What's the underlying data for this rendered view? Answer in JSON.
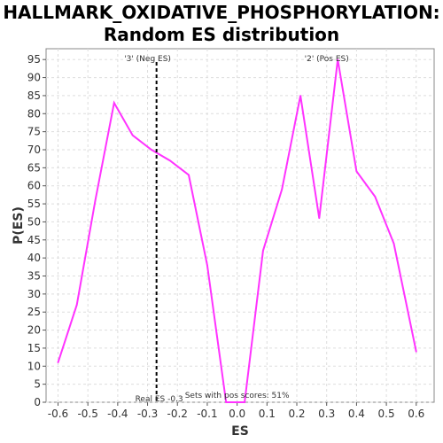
{
  "chart_data": {
    "type": "line",
    "title_line1": "HALLMARK_OXIDATIVE_PHOSPHORYLATION:",
    "title_line2": "Random ES distribution",
    "xlabel": "ES",
    "ylabel": "P(ES)",
    "xlim": [
      -0.64,
      0.66
    ],
    "ylim": [
      0,
      98
    ],
    "xticks": [
      -0.6,
      -0.5,
      -0.4,
      -0.3,
      -0.2,
      -0.1,
      0.0,
      0.1,
      0.2,
      0.3,
      0.4,
      0.5,
      0.6
    ],
    "xtick_labels": [
      "-0.6",
      "-0.5",
      "-0.4",
      "-0.3",
      "-0.2",
      "-0.1",
      "0.0",
      "0.1",
      "0.2",
      "0.3",
      "0.4",
      "0.5",
      "0.6"
    ],
    "yticks": [
      0,
      5,
      10,
      15,
      20,
      25,
      30,
      35,
      40,
      45,
      50,
      55,
      60,
      65,
      70,
      75,
      80,
      85,
      90,
      95
    ],
    "grid": true,
    "series": [
      {
        "color": "#ff33ff",
        "x": [
          -0.6,
          -0.537,
          -0.475,
          -0.412,
          -0.35,
          -0.287,
          -0.225,
          -0.162,
          -0.1,
          -0.037,
          0.025,
          0.087,
          0.15,
          0.212,
          0.275,
          0.337,
          0.4,
          0.462,
          0.525,
          0.6
        ],
        "y": [
          11,
          27,
          56,
          83,
          74,
          70,
          67,
          63,
          38,
          0,
          0,
          42,
          59,
          85,
          51,
          95,
          64,
          57,
          44,
          14
        ]
      }
    ],
    "real_es": -0.27,
    "real_es_label": "Real ES -0.3",
    "neg_label": "'3' (Neg ES)",
    "neg_color": "#0000ff",
    "pos_label": "'2' (Pos ES)",
    "pos_color": "#ff0000",
    "annotation": "Sets with pos scores: 51%"
  }
}
